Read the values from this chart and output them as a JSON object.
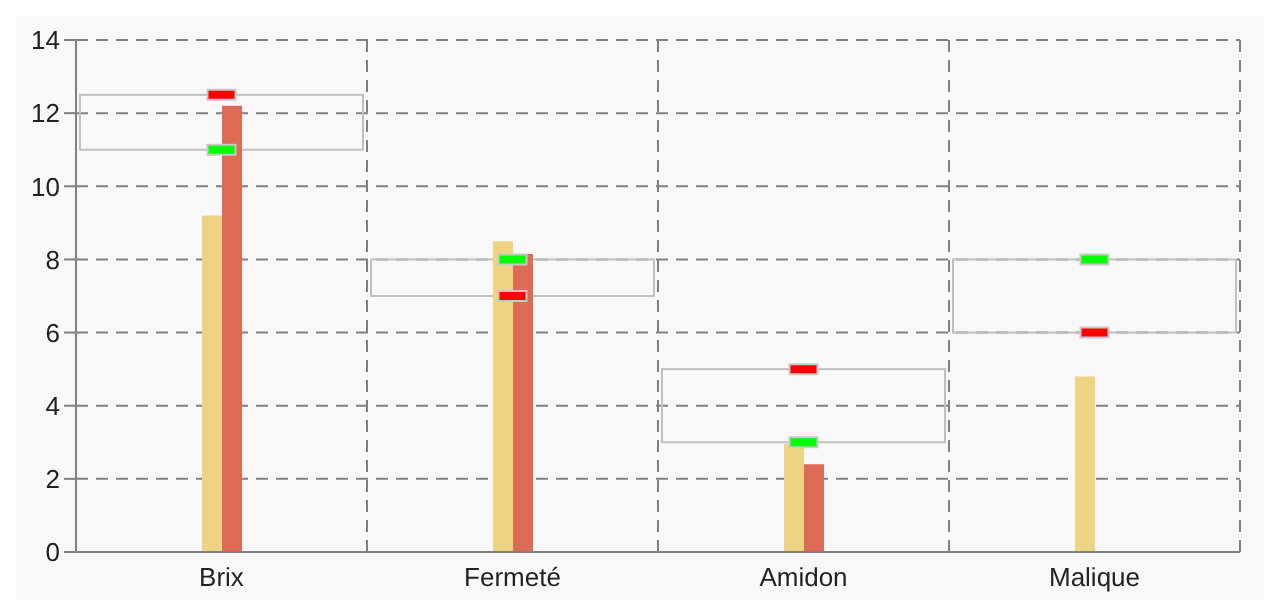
{
  "chart_data": {
    "type": "bar",
    "categories": [
      "Brix",
      "Fermeté",
      "Amidon",
      "Malique"
    ],
    "series": [
      {
        "color": "#c0c0c0",
        "base": [
          11,
          7,
          3,
          6
        ],
        "values": [
          1.5,
          1,
          2,
          2
        ]
      },
      {
        "color": "#edd382",
        "values": [
          9.2,
          8.5,
          2.95,
          4.8
        ]
      },
      {
        "color": "#dd6b55",
        "values": [
          12.2,
          8.15,
          2.4,
          0
        ]
      },
      {
        "type": "scatter",
        "color": "#00ff00",
        "x": [
          "Brix",
          "Fermeté",
          "Amidon",
          "Malique"
        ],
        "values": [
          11,
          8,
          3,
          8
        ]
      },
      {
        "type": "scatter",
        "color": "#ff0000",
        "x": [
          "Brix",
          "Fermeté",
          "Amidon",
          "Malique"
        ],
        "values": [
          12.5,
          7,
          5,
          6
        ]
      }
    ],
    "ylim": [
      0,
      14
    ],
    "yticks": [
      0,
      2,
      4,
      6,
      8,
      10,
      12,
      14
    ],
    "grid": true
  }
}
